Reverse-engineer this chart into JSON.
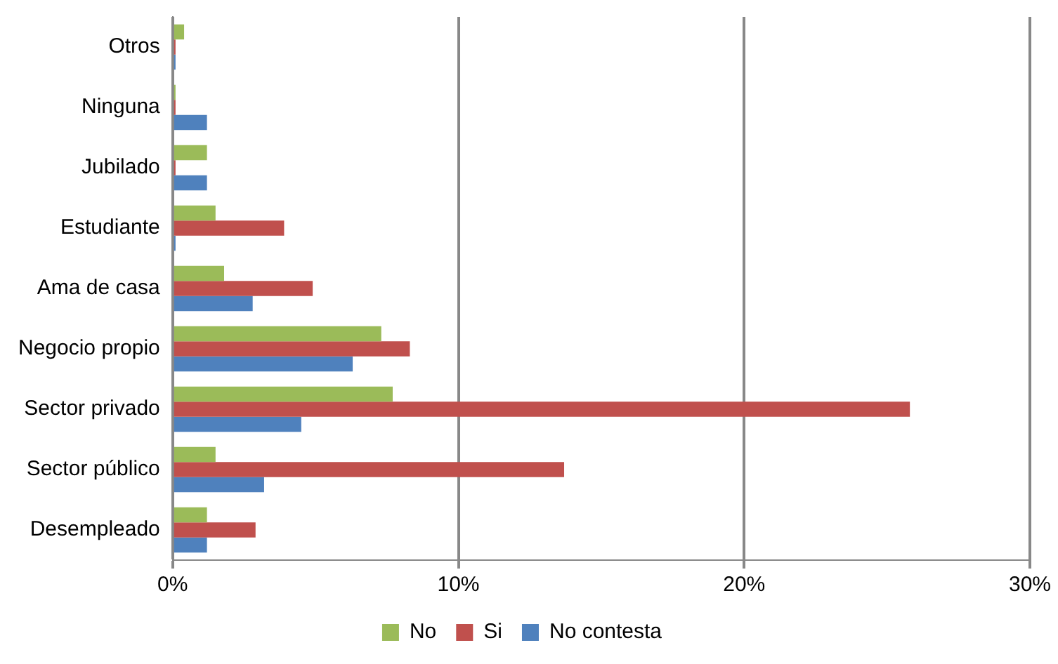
{
  "chart_data": {
    "type": "bar",
    "orientation": "horizontal",
    "categories": [
      "Otros",
      "Ninguna",
      "Jubilado",
      "Estudiante",
      "Ama de casa",
      "Negocio propio",
      "Sector privado",
      "Sector público",
      "Desempleado"
    ],
    "series": [
      {
        "name": "No",
        "color": "#9bbb59",
        "values": [
          0.4,
          0.1,
          1.2,
          1.5,
          1.8,
          7.3,
          7.7,
          1.5,
          1.2
        ]
      },
      {
        "name": "Si",
        "color": "#c0504d",
        "values": [
          0.1,
          0.1,
          0.1,
          3.9,
          4.9,
          8.3,
          25.8,
          13.7,
          2.9
        ]
      },
      {
        "name": "No contesta",
        "color": "#4f81bd",
        "values": [
          0.1,
          1.2,
          1.2,
          0.1,
          2.8,
          6.3,
          4.5,
          3.2,
          1.2
        ]
      }
    ],
    "xlim": [
      0,
      30
    ],
    "xticks": [
      {
        "value": 0,
        "label": "0%"
      },
      {
        "value": 10,
        "label": "10%"
      },
      {
        "value": 20,
        "label": "20%"
      },
      {
        "value": 30,
        "label": "30%"
      }
    ],
    "grid": "x",
    "legend": "bottom"
  }
}
